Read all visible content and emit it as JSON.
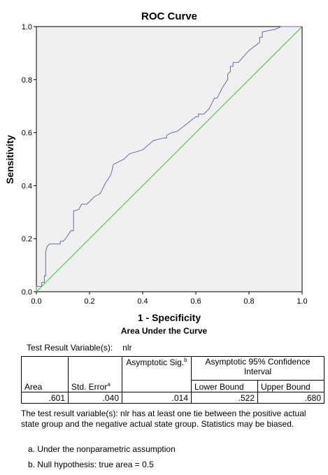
{
  "chart_data": {
    "type": "line",
    "title": "ROC Curve",
    "xlabel": "1 - Specificity",
    "ylabel": "Sensitivity",
    "xlim": [
      0.0,
      1.0
    ],
    "ylim": [
      0.0,
      1.0
    ],
    "xticks": [
      "0.0",
      "0.2",
      "0.4",
      "0.6",
      "0.8",
      "1.0"
    ],
    "yticks": [
      "0.0",
      "0.2",
      "0.4",
      "0.6",
      "0.8",
      "1.0"
    ],
    "grid": false,
    "series": [
      {
        "name": "",
        "color": "#5a6fb3",
        "points": [
          [
            0.0,
            0.0
          ],
          [
            0.0,
            0.02
          ],
          [
            0.02,
            0.02
          ],
          [
            0.02,
            0.035
          ],
          [
            0.03,
            0.035
          ],
          [
            0.03,
            0.06
          ],
          [
            0.035,
            0.06
          ],
          [
            0.035,
            0.15
          ],
          [
            0.04,
            0.17
          ],
          [
            0.05,
            0.18
          ],
          [
            0.09,
            0.18
          ],
          [
            0.09,
            0.19
          ],
          [
            0.1,
            0.19
          ],
          [
            0.11,
            0.2
          ],
          [
            0.13,
            0.23
          ],
          [
            0.14,
            0.23
          ],
          [
            0.14,
            0.305
          ],
          [
            0.16,
            0.31
          ],
          [
            0.17,
            0.33
          ],
          [
            0.19,
            0.33
          ],
          [
            0.22,
            0.36
          ],
          [
            0.24,
            0.37
          ],
          [
            0.26,
            0.41
          ],
          [
            0.28,
            0.44
          ],
          [
            0.29,
            0.48
          ],
          [
            0.33,
            0.5
          ],
          [
            0.35,
            0.52
          ],
          [
            0.4,
            0.535
          ],
          [
            0.44,
            0.57
          ],
          [
            0.48,
            0.58
          ],
          [
            0.49,
            0.58
          ],
          [
            0.49,
            0.59
          ],
          [
            0.51,
            0.6
          ],
          [
            0.53,
            0.605
          ],
          [
            0.6,
            0.66
          ],
          [
            0.61,
            0.66
          ],
          [
            0.61,
            0.67
          ],
          [
            0.63,
            0.67
          ],
          [
            0.65,
            0.69
          ],
          [
            0.67,
            0.73
          ],
          [
            0.68,
            0.73
          ],
          [
            0.7,
            0.77
          ],
          [
            0.72,
            0.8
          ],
          [
            0.72,
            0.82
          ],
          [
            0.73,
            0.83
          ],
          [
            0.73,
            0.85
          ],
          [
            0.74,
            0.85
          ],
          [
            0.74,
            0.865
          ],
          [
            0.76,
            0.865
          ],
          [
            0.8,
            0.91
          ],
          [
            0.84,
            0.94
          ],
          [
            0.84,
            0.96
          ],
          [
            0.85,
            0.96
          ],
          [
            0.85,
            0.98
          ],
          [
            0.9,
            0.99
          ],
          [
            0.92,
            1.0
          ],
          [
            1.0,
            1.0
          ]
        ]
      },
      {
        "name": "",
        "color": "#3cbf3c",
        "points": [
          [
            0.0,
            0.0
          ],
          [
            1.0,
            1.0
          ]
        ]
      }
    ]
  },
  "table": {
    "title": "Area Under the Curve",
    "test_result_label": "Test Result Variable(s):",
    "test_result_value": "nlr",
    "headers": {
      "area": "Area",
      "std_error": "Std. Error",
      "std_error_sup": "a",
      "asymptotic_sig": "Asymptotic Sig.",
      "asymptotic_sig_sup": "b",
      "ci": "Asymptotic 95% Confidence Interval",
      "lower": "Lower Bound",
      "upper": "Upper Bound"
    },
    "row": {
      "area": ".601",
      "std_error": ".040",
      "sig": ".014",
      "lower": ".522",
      "upper": ".680"
    },
    "note": "The test result variable(s): nlr has at least one tie between the positive actual state group and the negative actual state group. Statistics may be biased.",
    "footnote_a": "a. Under the nonparametric assumption",
    "footnote_b": "b. Null hypothesis: true area = 0.5"
  }
}
